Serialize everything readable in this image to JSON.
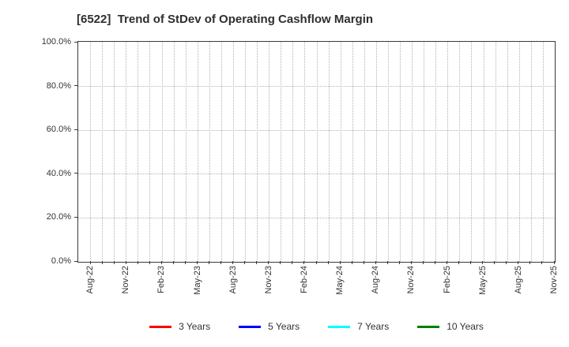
{
  "chart_data": {
    "type": "line",
    "title": "[6522]  Trend of StDev of Operating Cashflow Margin",
    "x_tick_labels": [
      "Aug-22",
      "Nov-22",
      "Feb-23",
      "May-23",
      "Aug-23",
      "Nov-23",
      "Feb-24",
      "May-24",
      "Aug-24",
      "Nov-24",
      "Feb-25",
      "May-25",
      "Aug-25",
      "Nov-25"
    ],
    "x_months_total": 40,
    "x_months_per_labeled_tick": 3,
    "y_tick_labels": [
      "0.0%",
      "20.0%",
      "40.0%",
      "60.0%",
      "80.0%",
      "100.0%"
    ],
    "y_tick_values": [
      0,
      20,
      40,
      60,
      80,
      100
    ],
    "ylim": [
      0,
      100
    ],
    "grid": true,
    "legend_position": "bottom",
    "series": [
      {
        "name": "3 Years",
        "color": "#ff0000",
        "values": []
      },
      {
        "name": "5 Years",
        "color": "#0000ff",
        "values": []
      },
      {
        "name": "7 Years",
        "color": "#00ffff",
        "values": []
      },
      {
        "name": "10 Years",
        "color": "#008000",
        "values": []
      }
    ]
  },
  "colors": {
    "background": "#ffffff",
    "axis_border": "#3a3a3a",
    "gridline": "#b3b3b3",
    "text": "#333333",
    "title": "#2e2e2e"
  }
}
